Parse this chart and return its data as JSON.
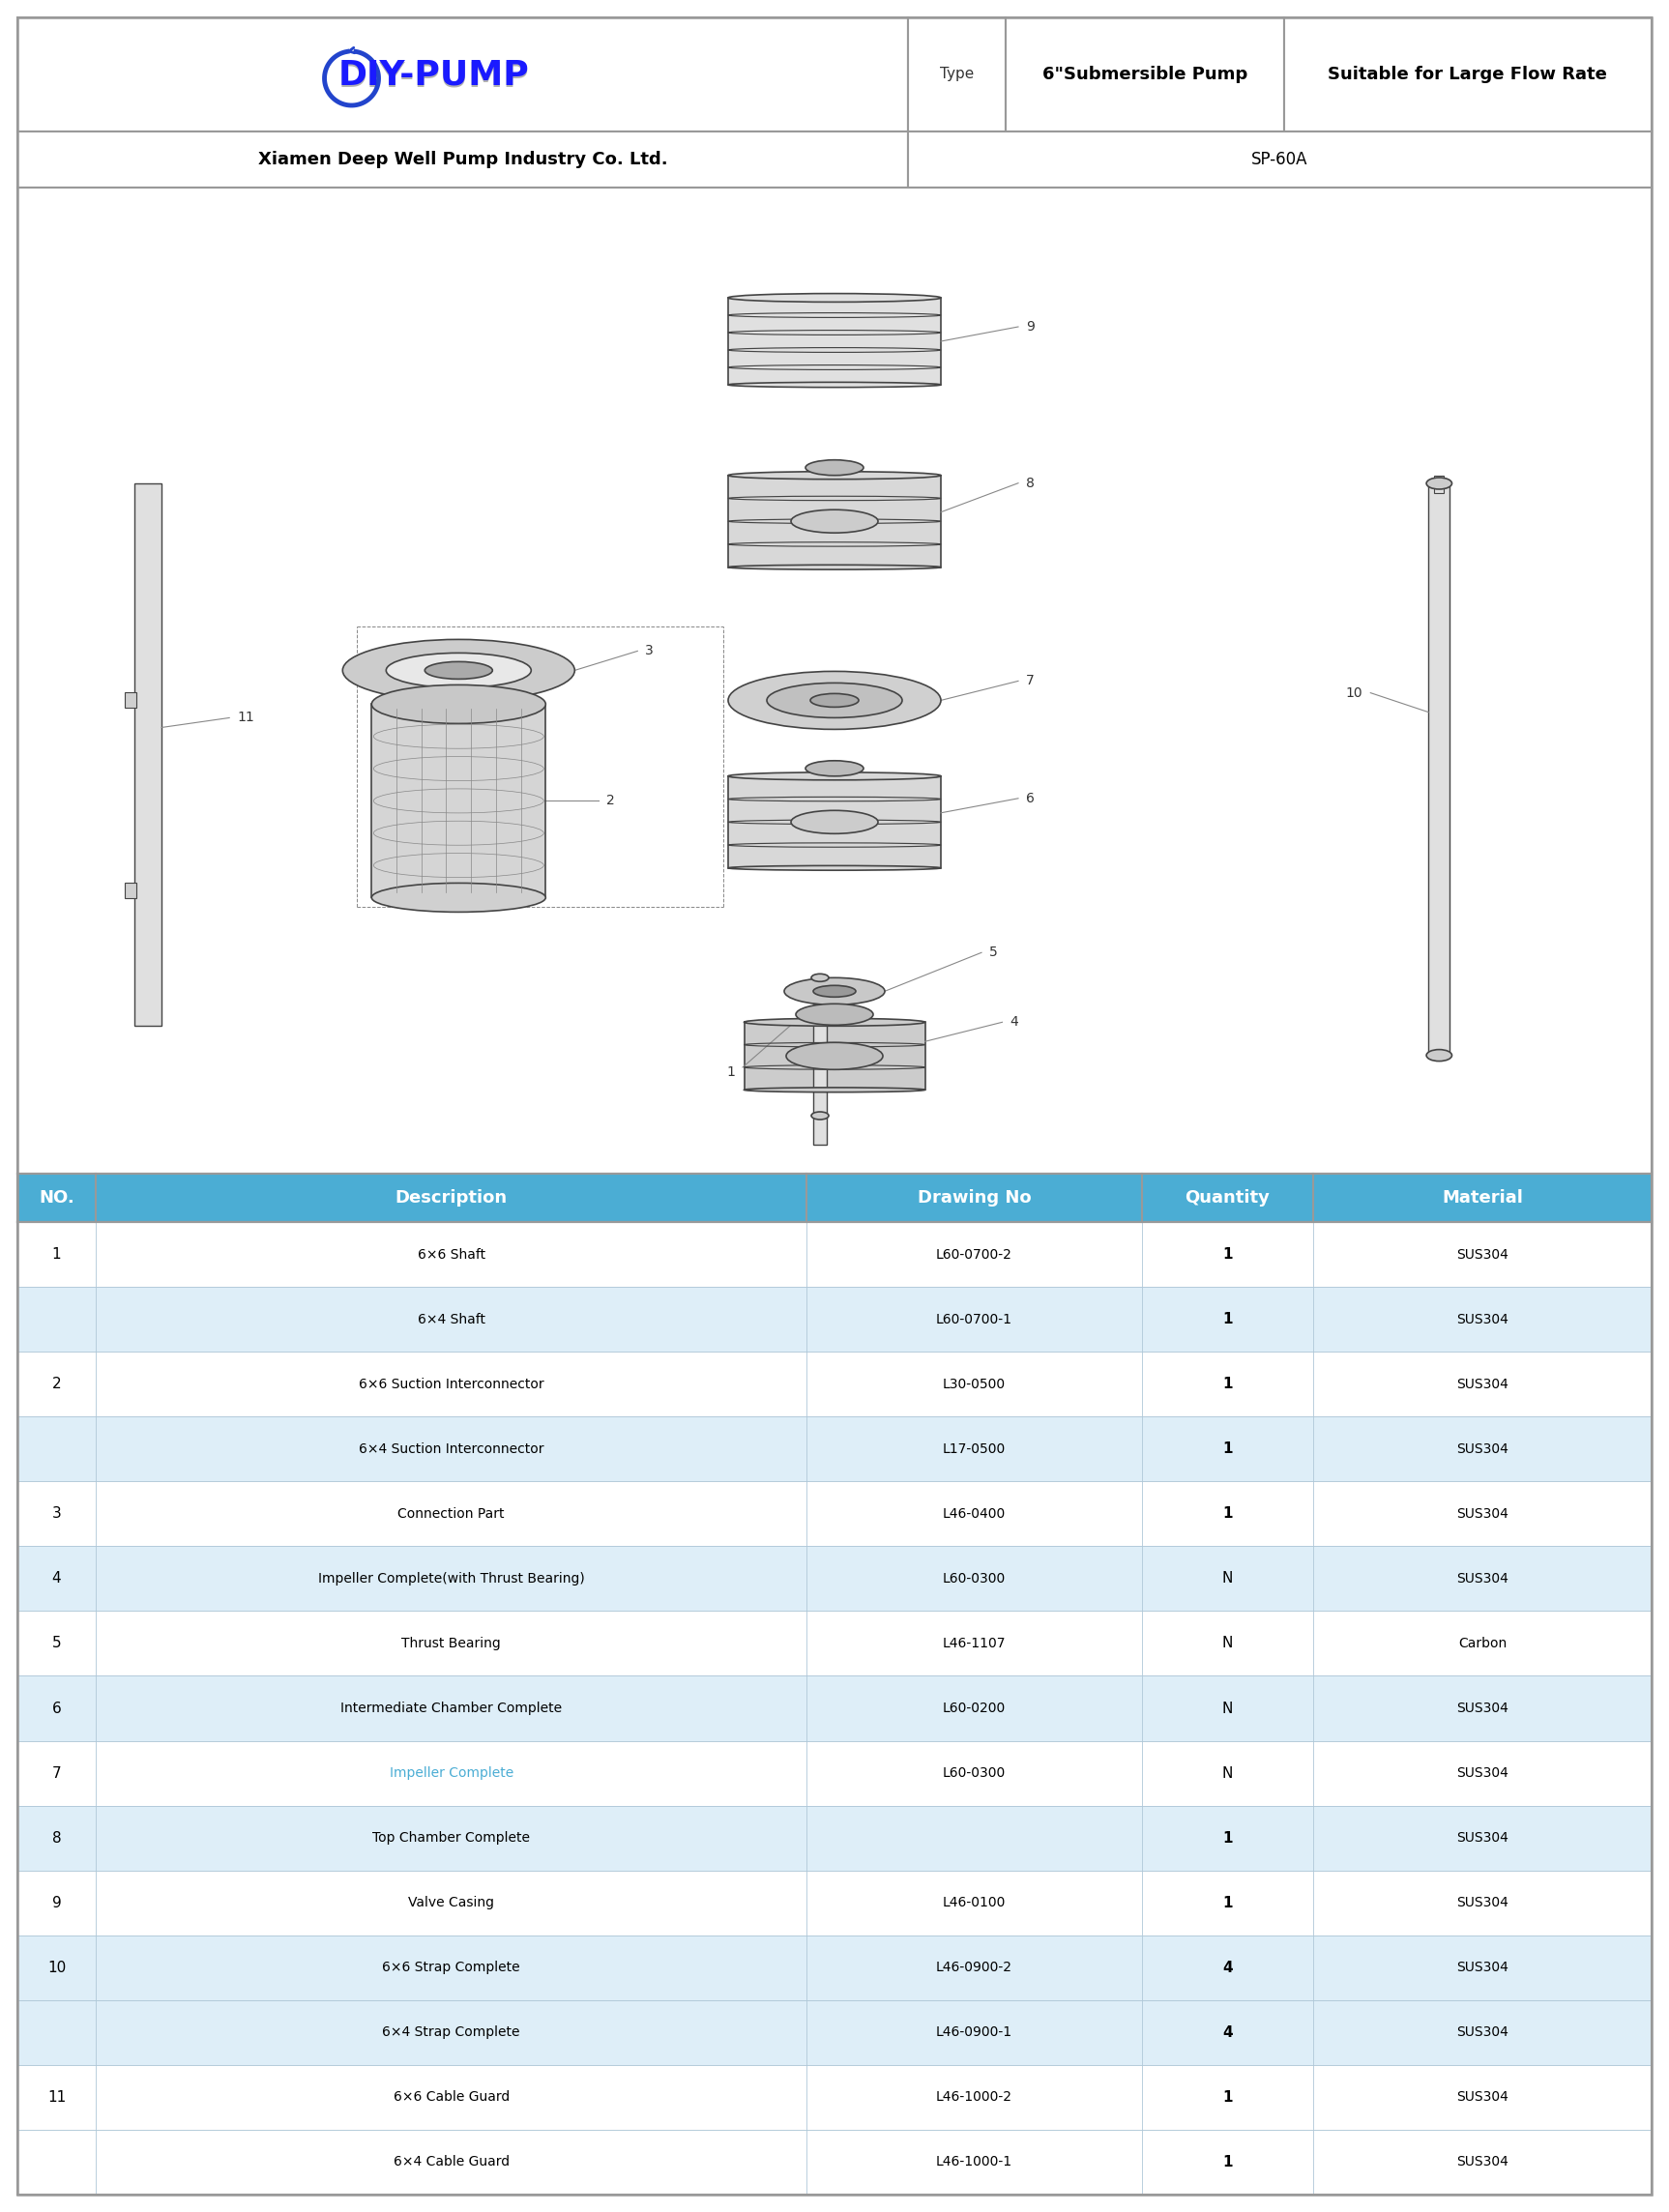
{
  "header_row": {
    "col1": "NO.",
    "col2": "Description",
    "col3": "Drawing No",
    "col4": "Quantity",
    "col5": "Material",
    "bg_color": "#4badd4",
    "text_color": "#ffffff",
    "font_size": 13
  },
  "table_rows": [
    {
      "no": "1",
      "desc": "6×6 Shaft",
      "drawing": "L60-0700-2",
      "qty": "1",
      "mat": "SUS304",
      "shade": false,
      "desc_color": "#000000",
      "qty_bold": true
    },
    {
      "no": "",
      "desc": "6×4 Shaft",
      "drawing": "L60-0700-1",
      "qty": "1",
      "mat": "SUS304",
      "shade": true,
      "desc_color": "#000000",
      "qty_bold": true
    },
    {
      "no": "2",
      "desc": "6×6 Suction Interconnector",
      "drawing": "L30-0500",
      "qty": "1",
      "mat": "SUS304",
      "shade": false,
      "desc_color": "#000000",
      "qty_bold": true
    },
    {
      "no": "",
      "desc": "6×4 Suction Interconnector",
      "drawing": "L17-0500",
      "qty": "1",
      "mat": "SUS304",
      "shade": true,
      "desc_color": "#000000",
      "qty_bold": true
    },
    {
      "no": "3",
      "desc": "Connection Part",
      "drawing": "L46-0400",
      "qty": "1",
      "mat": "SUS304",
      "shade": false,
      "desc_color": "#000000",
      "qty_bold": true
    },
    {
      "no": "4",
      "desc": "Impeller Complete(with Thrust Bearing)",
      "drawing": "L60-0300",
      "qty": "N",
      "mat": "SUS304",
      "shade": true,
      "desc_color": "#000000",
      "qty_bold": false
    },
    {
      "no": "5",
      "desc": "Thrust Bearing",
      "drawing": "L46-1107",
      "qty": "N",
      "mat": "Carbon",
      "shade": false,
      "desc_color": "#000000",
      "qty_bold": false
    },
    {
      "no": "6",
      "desc": "Intermediate Chamber Complete",
      "drawing": "L60-0200",
      "qty": "N",
      "mat": "SUS304",
      "shade": true,
      "desc_color": "#000000",
      "qty_bold": false
    },
    {
      "no": "7",
      "desc": "Impeller Complete",
      "drawing": "L60-0300",
      "qty": "N",
      "mat": "SUS304",
      "shade": false,
      "desc_color": "#4badd4",
      "qty_bold": false
    },
    {
      "no": "8",
      "desc": "Top Chamber Complete",
      "drawing": "",
      "qty": "1",
      "mat": "SUS304",
      "shade": true,
      "desc_color": "#000000",
      "qty_bold": true
    },
    {
      "no": "9",
      "desc": "Valve Casing",
      "drawing": "L46-0100",
      "qty": "1",
      "mat": "SUS304",
      "shade": false,
      "desc_color": "#000000",
      "qty_bold": true
    },
    {
      "no": "10",
      "desc": "6×6 Strap Complete",
      "drawing": "L46-0900-2",
      "qty": "4",
      "mat": "SUS304",
      "shade": true,
      "desc_color": "#000000",
      "qty_bold": true
    },
    {
      "no": "",
      "desc": "6×4 Strap Complete",
      "drawing": "L46-0900-1",
      "qty": "4",
      "mat": "SUS304",
      "shade": true,
      "desc_color": "#000000",
      "qty_bold": true
    },
    {
      "no": "11",
      "desc": "6×6 Cable Guard",
      "drawing": "L46-1000-2",
      "qty": "1",
      "mat": "SUS304",
      "shade": false,
      "desc_color": "#000000",
      "qty_bold": true
    },
    {
      "no": "",
      "desc": "6×4 Cable Guard",
      "drawing": "L46-1000-1",
      "qty": "1",
      "mat": "SUS304",
      "shade": false,
      "desc_color": "#000000",
      "qty_bold": true
    }
  ],
  "title_row": {
    "company": "Xiamen Deep Well Pump Industry Co. Ltd.",
    "model": "SP-60A"
  },
  "border_color": "#b0c8d8",
  "shade_color": "#deeef8",
  "white_color": "#ffffff",
  "outer_border": "#999999",
  "logo_div": 0.545,
  "type_div": 0.605,
  "pump_div": 0.775
}
